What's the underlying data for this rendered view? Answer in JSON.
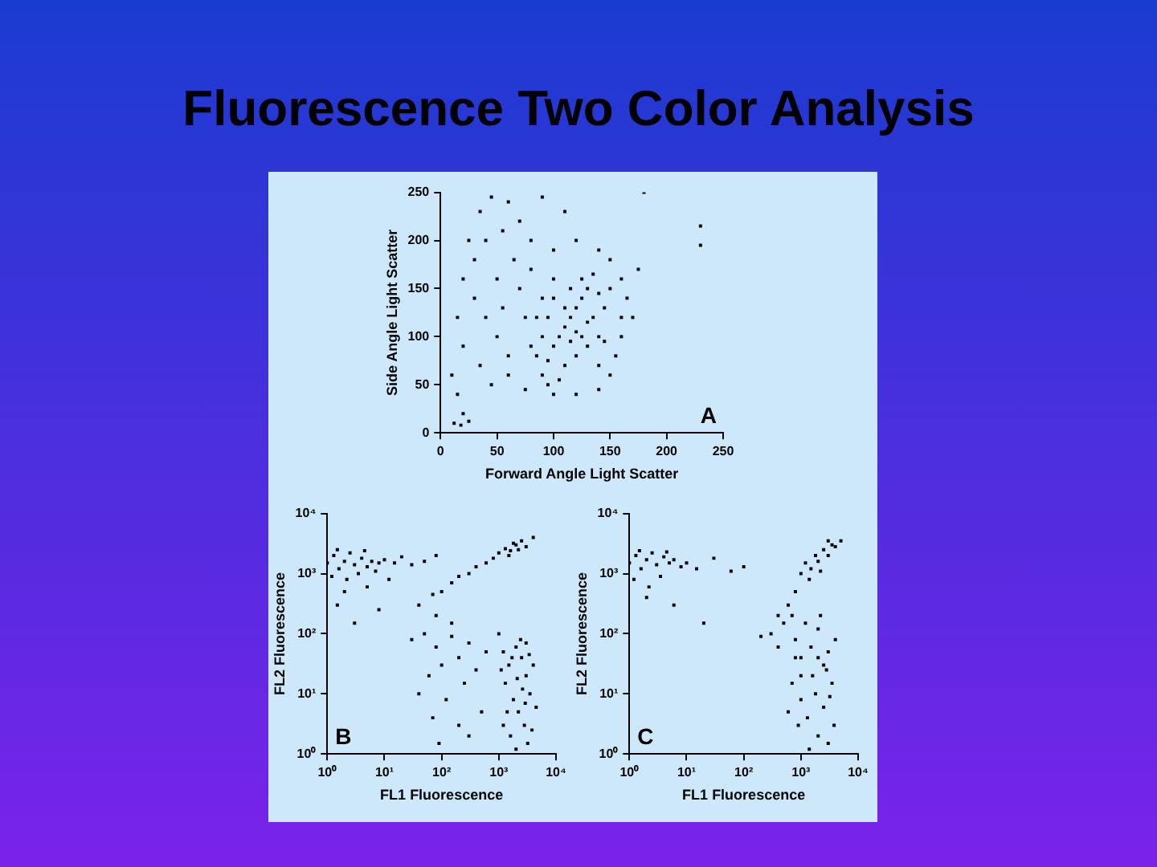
{
  "chart_data": [
    {
      "type": "scatter",
      "title": "Fluorescence Two Color Analysis",
      "xlabel": "Forward Angle Light Scatter",
      "ylabel": "Side Angle Light Scatter",
      "annotations": [
        "A"
      ],
      "xlim": [
        0,
        250
      ],
      "ylim": [
        0,
        250
      ],
      "xticks": [
        0,
        50,
        100,
        150,
        200,
        250
      ],
      "yticks": [
        0,
        50,
        100,
        150,
        200,
        250
      ],
      "grid": false,
      "legend": false,
      "marker": "square",
      "series": [
        {
          "color": "#000000",
          "x": [
            90,
            95,
            100,
            105,
            110,
            115,
            120,
            125,
            130,
            135,
            140,
            145,
            100,
            95,
            90,
            85,
            110,
            120,
            130,
            140,
            105,
            115,
            125,
            135,
            100,
            90,
            85,
            110,
            120,
            130,
            140,
            145,
            95,
            115,
            125,
            60,
            50,
            40,
            30,
            20,
            25,
            35,
            45,
            55,
            65,
            70,
            75,
            60,
            45,
            35,
            20,
            15,
            30,
            40,
            70,
            80,
            100,
            120,
            140,
            150,
            160,
            165,
            170,
            160,
            155,
            150,
            140,
            120,
            100,
            75,
            80,
            150,
            160,
            175,
            110,
            90,
            60,
            15,
            20,
            12,
            18,
            25,
            10,
            50,
            55,
            80,
            230,
            230,
            180
          ],
          "values": [
            60,
            75,
            90,
            100,
            110,
            120,
            130,
            140,
            150,
            120,
            100,
            130,
            140,
            120,
            100,
            80,
            70,
            80,
            90,
            70,
            55,
            150,
            160,
            165,
            160,
            140,
            120,
            130,
            105,
            115,
            145,
            95,
            50,
            95,
            100,
            80,
            100,
            120,
            140,
            160,
            200,
            230,
            245,
            210,
            180,
            150,
            120,
            60,
            50,
            70,
            90,
            120,
            180,
            200,
            220,
            200,
            190,
            200,
            190,
            180,
            160,
            140,
            120,
            100,
            80,
            60,
            45,
            40,
            40,
            45,
            90,
            150,
            120,
            170,
            230,
            245,
            240,
            40,
            20,
            10,
            8,
            12,
            60,
            160,
            130,
            170,
            195,
            215,
            250
          ]
        }
      ]
    },
    {
      "type": "scatter",
      "xlabel": "FL1 Fluorescence",
      "ylabel": "FL2 Fluorescence",
      "annotations": [
        "B"
      ],
      "log": "xy",
      "xlim": [
        1,
        10000
      ],
      "ylim": [
        1,
        10000
      ],
      "xticks": [
        {
          "value": 1,
          "label": "10⁰"
        },
        {
          "value": 10,
          "label": "10¹"
        },
        {
          "value": 100,
          "label": "10²"
        },
        {
          "value": 1000,
          "label": "10³"
        },
        {
          "value": 10000,
          "label": "10⁴"
        }
      ],
      "yticks": [
        {
          "value": 1,
          "label": "10⁰"
        },
        {
          "value": 10,
          "label": "10¹"
        },
        {
          "value": 100,
          "label": "10²"
        },
        {
          "value": 1000,
          "label": "10³"
        },
        {
          "value": 10000,
          "label": "10⁴"
        }
      ],
      "grid": false,
      "legend": false,
      "marker": "square",
      "series": [
        {
          "color": "#000000",
          "x": [
            1,
            1.3,
            1.6,
            2,
            2.5,
            3,
            4,
            5,
            6,
            8,
            1.2,
            2.2,
            3.5,
            1.5,
            4.5,
            7,
            10,
            15,
            20,
            30,
            50,
            80,
            12,
            2,
            5,
            1.5,
            3,
            8,
            40,
            70,
            100,
            150,
            200,
            300,
            400,
            600,
            800,
            1000,
            1300,
            1600,
            2000,
            2500,
            3000,
            1500,
            1800,
            2200,
            4000,
            30,
            50,
            80,
            150,
            200,
            300,
            60,
            100,
            40,
            120,
            250,
            400,
            500,
            70,
            200,
            90,
            300,
            600,
            150,
            80,
            1200,
            1500,
            2000,
            2500,
            3000,
            3500,
            4000,
            1300,
            1800,
            2200,
            2800,
            3200,
            1600,
            2000,
            2600,
            3000,
            1400,
            4500,
            1100,
            2400,
            3800,
            1700,
            2100,
            2900,
            3400,
            1000,
            1200
          ],
          "values": [
            1500,
            2000,
            1200,
            1600,
            2200,
            1400,
            1800,
            1300,
            1600,
            1500,
            900,
            800,
            1000,
            2500,
            2400,
            1100,
            1700,
            1500,
            1900,
            1400,
            1600,
            2000,
            800,
            500,
            600,
            300,
            150,
            250,
            300,
            450,
            500,
            700,
            900,
            1000,
            1300,
            1500,
            1800,
            2200,
            2600,
            2400,
            3000,
            3500,
            2800,
            2000,
            3200,
            2500,
            4000,
            80,
            100,
            60,
            90,
            40,
            70,
            20,
            30,
            10,
            8,
            15,
            25,
            5,
            4,
            3,
            1.5,
            2,
            50,
            150,
            200,
            50,
            30,
            60,
            40,
            20,
            10,
            30,
            15,
            8,
            5,
            3,
            1.5,
            2,
            1.2,
            12,
            70,
            5,
            6,
            25,
            80,
            2.5,
            40,
            18,
            7,
            45,
            100,
            3
          ]
        }
      ]
    },
    {
      "type": "scatter",
      "xlabel": "FL1 Fluorescence",
      "ylabel": "FL2 Fluorescence",
      "annotations": [
        "C"
      ],
      "log": "xy",
      "xlim": [
        1,
        10000
      ],
      "ylim": [
        1,
        10000
      ],
      "xticks": [
        {
          "value": 1,
          "label": "10⁰"
        },
        {
          "value": 10,
          "label": "10¹"
        },
        {
          "value": 100,
          "label": "10²"
        },
        {
          "value": 1000,
          "label": "10³"
        },
        {
          "value": 10000,
          "label": "10⁴"
        }
      ],
      "yticks": [
        {
          "value": 1,
          "label": "10⁰"
        },
        {
          "value": 10,
          "label": "10¹"
        },
        {
          "value": 100,
          "label": "10²"
        },
        {
          "value": 1000,
          "label": "10³"
        },
        {
          "value": 10000,
          "label": "10⁴"
        }
      ],
      "grid": false,
      "legend": false,
      "marker": "square",
      "series": [
        {
          "color": "#000000",
          "x": [
            1,
            1.3,
            1.6,
            2,
            2.5,
            3,
            4,
            5,
            6,
            8,
            1.2,
            2.2,
            3.5,
            1.5,
            4.5,
            10,
            15,
            30,
            60,
            100,
            2,
            6,
            20,
            800,
            1000,
            1200,
            1500,
            1800,
            2000,
            2500,
            3000,
            3500,
            4000,
            2200,
            1400,
            3000,
            5000,
            600,
            400,
            300,
            400,
            500,
            700,
            200,
            800,
            1000,
            800,
            1000,
            1200,
            1500,
            2000,
            2500,
            3000,
            3500,
            4000,
            1000,
            1300,
            1600,
            2000,
            2500,
            3000,
            1800,
            2200,
            3200,
            700,
            900,
            3800,
            1400,
            2800,
            2000,
            600
          ],
          "values": [
            1500,
            2000,
            1200,
            1700,
            2200,
            1400,
            1900,
            1500,
            1700,
            1300,
            800,
            600,
            900,
            2400,
            2300,
            1500,
            1200,
            1800,
            1100,
            1300,
            400,
            300,
            150,
            500,
            1000,
            1500,
            1200,
            2000,
            1600,
            2500,
            2000,
            3000,
            2800,
            1100,
            800,
            3500,
            3500,
            300,
            200,
            100,
            60,
            150,
            200,
            90,
            40,
            20,
            80,
            40,
            150,
            60,
            120,
            30,
            50,
            15,
            80,
            8,
            4,
            20,
            2,
            6,
            1.5,
            10,
            200,
            9,
            15,
            3,
            3,
            1.2,
            25,
            40,
            5
          ]
        }
      ]
    }
  ]
}
